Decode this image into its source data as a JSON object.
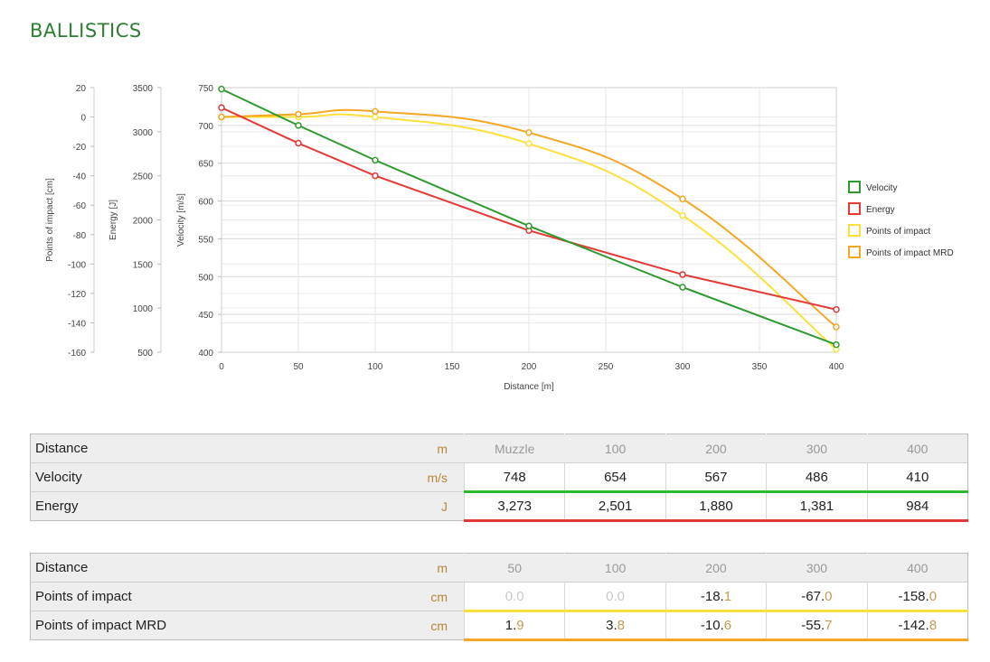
{
  "title": "BALLISTICS",
  "chart_data": {
    "type": "line",
    "xlabel": "Distance [m]",
    "xlim": [
      0,
      400
    ],
    "x_ticks": [
      0,
      50,
      100,
      150,
      200,
      250,
      300,
      350,
      400
    ],
    "grid": true,
    "legend_position": "right",
    "axes": [
      {
        "id": "poi",
        "label": "Points of impact [cm]",
        "min": -160,
        "max": 20,
        "ticks": [
          20,
          0,
          -20,
          -40,
          -60,
          -80,
          -100,
          -120,
          -140,
          -160
        ]
      },
      {
        "id": "energy",
        "label": "Energy [J]",
        "min": 500,
        "max": 3500,
        "ticks": [
          3500,
          3000,
          2500,
          2000,
          1500,
          1000,
          500
        ]
      },
      {
        "id": "velocity",
        "label": "Velocity [m/s]",
        "min": 400,
        "max": 750,
        "ticks": [
          750,
          700,
          650,
          600,
          550,
          500,
          450,
          400
        ]
      }
    ],
    "series": [
      {
        "name": "Velocity",
        "axis": "velocity",
        "color": "#2e9a2e",
        "smooth": false,
        "x": [
          0,
          50,
          100,
          200,
          300,
          400
        ],
        "values": [
          748,
          700,
          654,
          567,
          486,
          410
        ]
      },
      {
        "name": "Energy",
        "axis": "energy",
        "color": "#e53935",
        "smooth": false,
        "x": [
          0,
          50,
          100,
          200,
          300,
          400
        ],
        "values": [
          3273,
          2870,
          2501,
          1880,
          1381,
          984
        ]
      },
      {
        "name": "Points of impact",
        "axis": "poi",
        "color": "#fde03a",
        "smooth": true,
        "x": [
          0,
          50,
          100,
          200,
          300,
          400
        ],
        "values": [
          0,
          0,
          0,
          -18.1,
          -67.0,
          -158.0
        ]
      },
      {
        "name": "Points of impact MRD",
        "axis": "poi",
        "color": "#f5a623",
        "smooth": true,
        "x": [
          0,
          50,
          100,
          200,
          300,
          400
        ],
        "values": [
          0,
          1.9,
          3.8,
          -10.6,
          -55.7,
          -142.8
        ]
      }
    ]
  },
  "table1": {
    "columns": [
      "Muzzle",
      "100",
      "200",
      "300",
      "400"
    ],
    "rows": [
      {
        "label": "Distance",
        "unit": "m"
      },
      {
        "label": "Velocity",
        "unit": "m/s",
        "values": [
          "748",
          "654",
          "567",
          "486",
          "410"
        ]
      },
      {
        "label": "Energy",
        "unit": "J",
        "values": [
          "3,273",
          "2,501",
          "1,880",
          "1,381",
          "984"
        ]
      }
    ]
  },
  "table2": {
    "columns": [
      "50",
      "100",
      "200",
      "300",
      "400"
    ],
    "rows": [
      {
        "label": "Distance",
        "unit": "m"
      },
      {
        "label": "Points of impact",
        "unit": "cm",
        "cells": [
          [
            "",
            "0.0"
          ],
          [
            "",
            "0.0"
          ],
          [
            "-18.",
            "1"
          ],
          [
            "-67.",
            "0"
          ],
          [
            "-158.",
            "0"
          ]
        ]
      },
      {
        "label": "Points of impact MRD",
        "unit": "cm",
        "cells": [
          [
            "1.",
            "9"
          ],
          [
            "3.",
            "8"
          ],
          [
            "-10.",
            "6"
          ],
          [
            "-55.",
            "7"
          ],
          [
            "-142.",
            "8"
          ]
        ]
      }
    ]
  }
}
